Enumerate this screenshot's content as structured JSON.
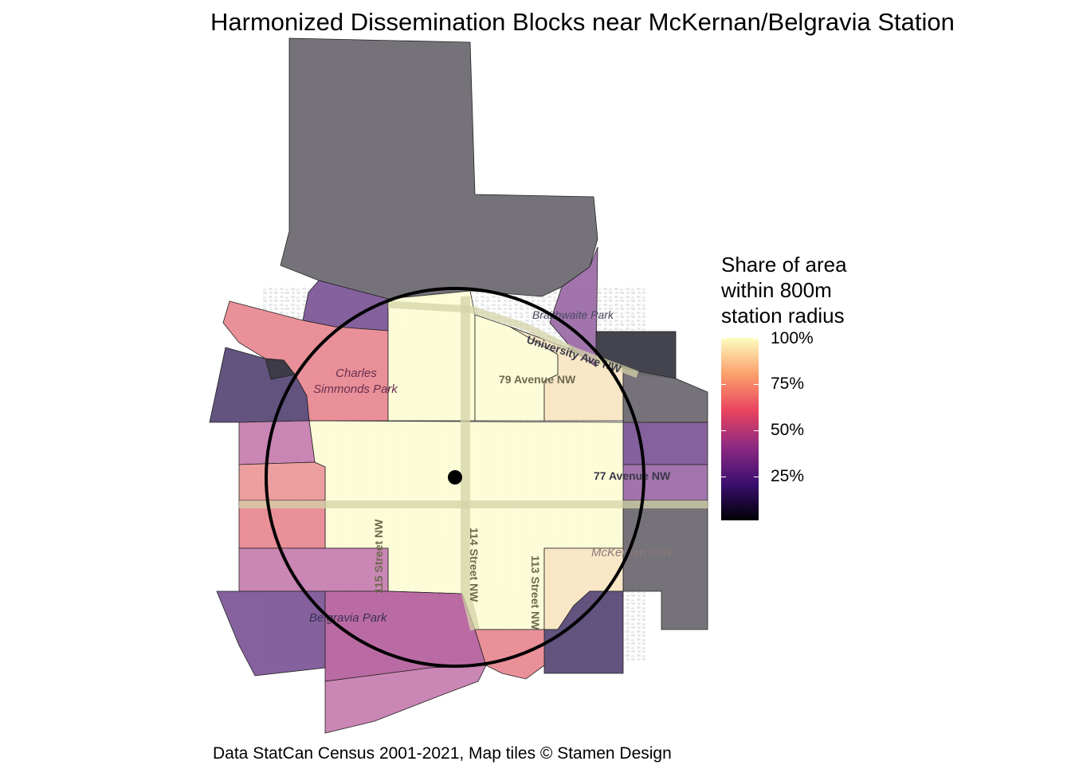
{
  "title": "Harmonized Dissemination Blocks near McKernan/Belgravia Station",
  "caption": "Data StatCan Census 2001-2021, Map tiles © Stamen Design",
  "legend": {
    "title_lines": [
      "Share of area",
      "within 800m",
      "station radius"
    ],
    "ticks": [
      "100%",
      "75%",
      "50%",
      "25%"
    ]
  },
  "map_labels": {
    "charles_simmonds_line1": "Charles",
    "charles_simmonds_line2": "Simmonds Park",
    "braithwaite_park": "Braithwaite Park",
    "university_ave": "University Ave NW",
    "avenue_79": "79 Avenue NW",
    "avenue_77": "77 Avenue NW",
    "street_115": "115 Street NW",
    "street_114": "114 Street NW",
    "street_113": "113 Street NW",
    "belgravia_park": "Belgravia Park",
    "mckernan": "McKernan Park"
  },
  "colors": {
    "full": "#fcfdd6",
    "high": "#f9e6c4",
    "mid_pink": "#e98a94",
    "light_pink": "#ec9a9a",
    "magenta": "#c77fb0",
    "purple": "#9c6ea8",
    "dark_purple": "#7e5898",
    "very_dark": "#3a3a44",
    "grey": "#6f6a72",
    "circle": "#000000"
  }
}
